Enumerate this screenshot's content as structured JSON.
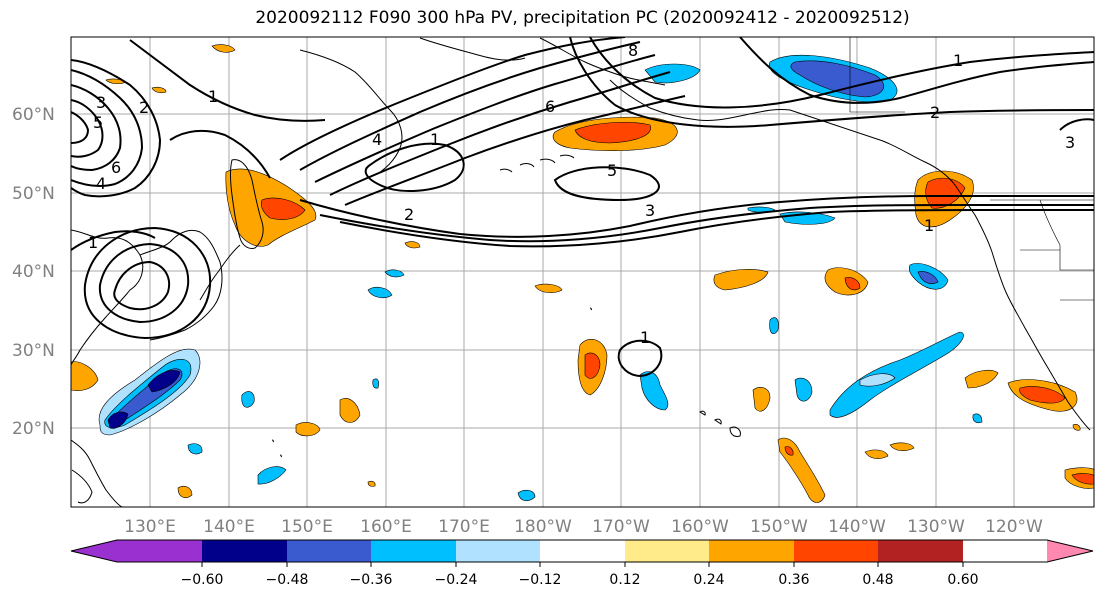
{
  "title": "2020092112 F090 300 hPa PV, precipitation PC (2020092412 - 2020092512)",
  "lat_labels": [
    "60°N",
    "50°N",
    "40°N",
    "30°N",
    "20°N"
  ],
  "lon_labels": [
    "130°E",
    "140°E",
    "150°E",
    "160°E",
    "170°E",
    "180°W",
    "170°W",
    "160°W",
    "150°W",
    "140°W",
    "130°W",
    "120°W"
  ],
  "colorbar": {
    "colors": [
      "#9b30d0",
      "#00008b",
      "#3a5bd0",
      "#00bfff",
      "#b0e2ff",
      "#ffffff",
      "#ffeb8a",
      "#ffa500",
      "#ff4500",
      "#b22222",
      "#ff88b0"
    ],
    "tick_labels": [
      "−0.60",
      "−0.48",
      "−0.36",
      "−0.24",
      "−0.12",
      "0.12",
      "0.24",
      "0.36",
      "0.48",
      "0.60"
    ]
  },
  "pv_contour_labels": [
    "3",
    "2",
    "5",
    "6",
    "4",
    "1",
    "1",
    "4",
    "1",
    "2",
    "6",
    "8",
    "5",
    "3",
    "1",
    "2",
    "3",
    "1",
    "1"
  ]
}
